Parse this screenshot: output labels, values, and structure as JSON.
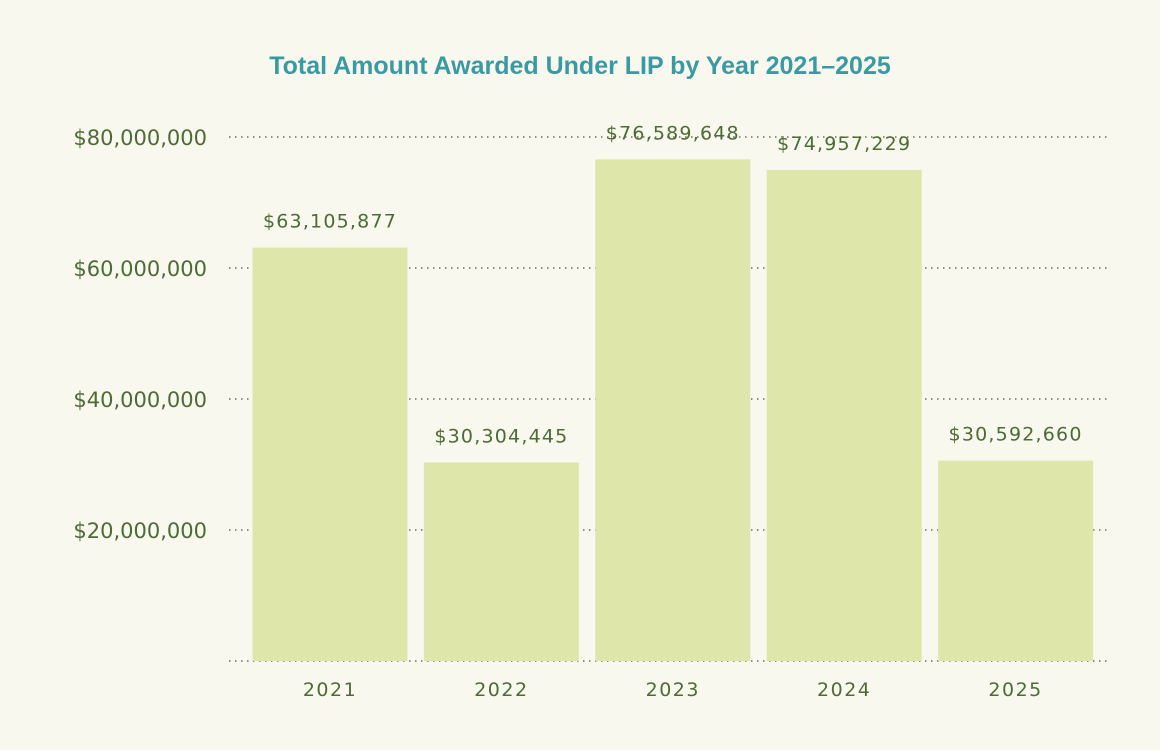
{
  "colors": {
    "background": "#f9f8ef",
    "title": "#3a9aa3",
    "text": "#4d6b35",
    "bar": "#dfe6a9",
    "grid": "#6e6e63"
  },
  "chart_data": {
    "type": "bar",
    "title": "Total Amount Awarded Under LIP by Year 2021–2025",
    "xlabel": "",
    "ylabel": "",
    "categories": [
      "2021",
      "2022",
      "2023",
      "2024",
      "2025"
    ],
    "values": [
      63105877,
      30304445,
      76589648,
      74957229,
      30592660
    ],
    "data_labels": [
      "$63,105,877",
      "$30,304,445",
      "$76,589,648",
      "$74,957,229",
      "$30,592,660"
    ],
    "ylim": [
      0,
      80000000
    ],
    "yticks": [
      20000000,
      40000000,
      60000000,
      80000000
    ],
    "ytick_labels": [
      "$20,000,000",
      "$40,000,000",
      "$60,000,000",
      "$80,000,000"
    ],
    "grid": true,
    "grid_style": "dotted"
  }
}
